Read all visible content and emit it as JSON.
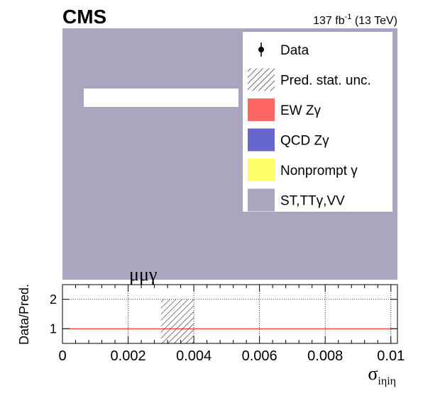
{
  "header": {
    "experiment": "CMS",
    "luminosity_value": "137 fb",
    "luminosity_exp": "-1",
    "luminosity_energy": " (13 TeV)"
  },
  "chart_data": {
    "type": "bar",
    "channel_label": "μμγ",
    "xlabel": "σ",
    "xlabel_subscript": "iηiη",
    "xlim": [
      0,
      0.0102
    ],
    "x_ticks": [
      "0",
      "0.002",
      "0.004",
      "0.006",
      "0.008",
      "0.01"
    ],
    "grid": true,
    "legend_position": "top-right",
    "legend": [
      {
        "label": "Data",
        "kind": "marker",
        "color": "#000000"
      },
      {
        "label": "Pred. stat. unc.",
        "kind": "hatch",
        "color": "#000000"
      },
      {
        "label": "EW Zγ",
        "kind": "fill",
        "color": "#ff6666"
      },
      {
        "label": "QCD Zγ",
        "kind": "fill",
        "color": "#6666cc"
      },
      {
        "label": "Nonprompt γ",
        "kind": "fill",
        "color": "#ffff66"
      },
      {
        "label": "ST,TTγ,VV",
        "kind": "fill",
        "color": "#aaa6c0"
      }
    ],
    "ratio_panel": {
      "ylabel": "Data/Pred.",
      "ylim": [
        0.5,
        2.5
      ],
      "y_ticks": [
        "1",
        "2"
      ],
      "reference_line": 1,
      "reference_color": "#ff0000",
      "uncertainty_band": {
        "x_start": 0.003,
        "x_end": 0.004,
        "y_low": 0.5,
        "y_high": 2.0
      }
    }
  }
}
